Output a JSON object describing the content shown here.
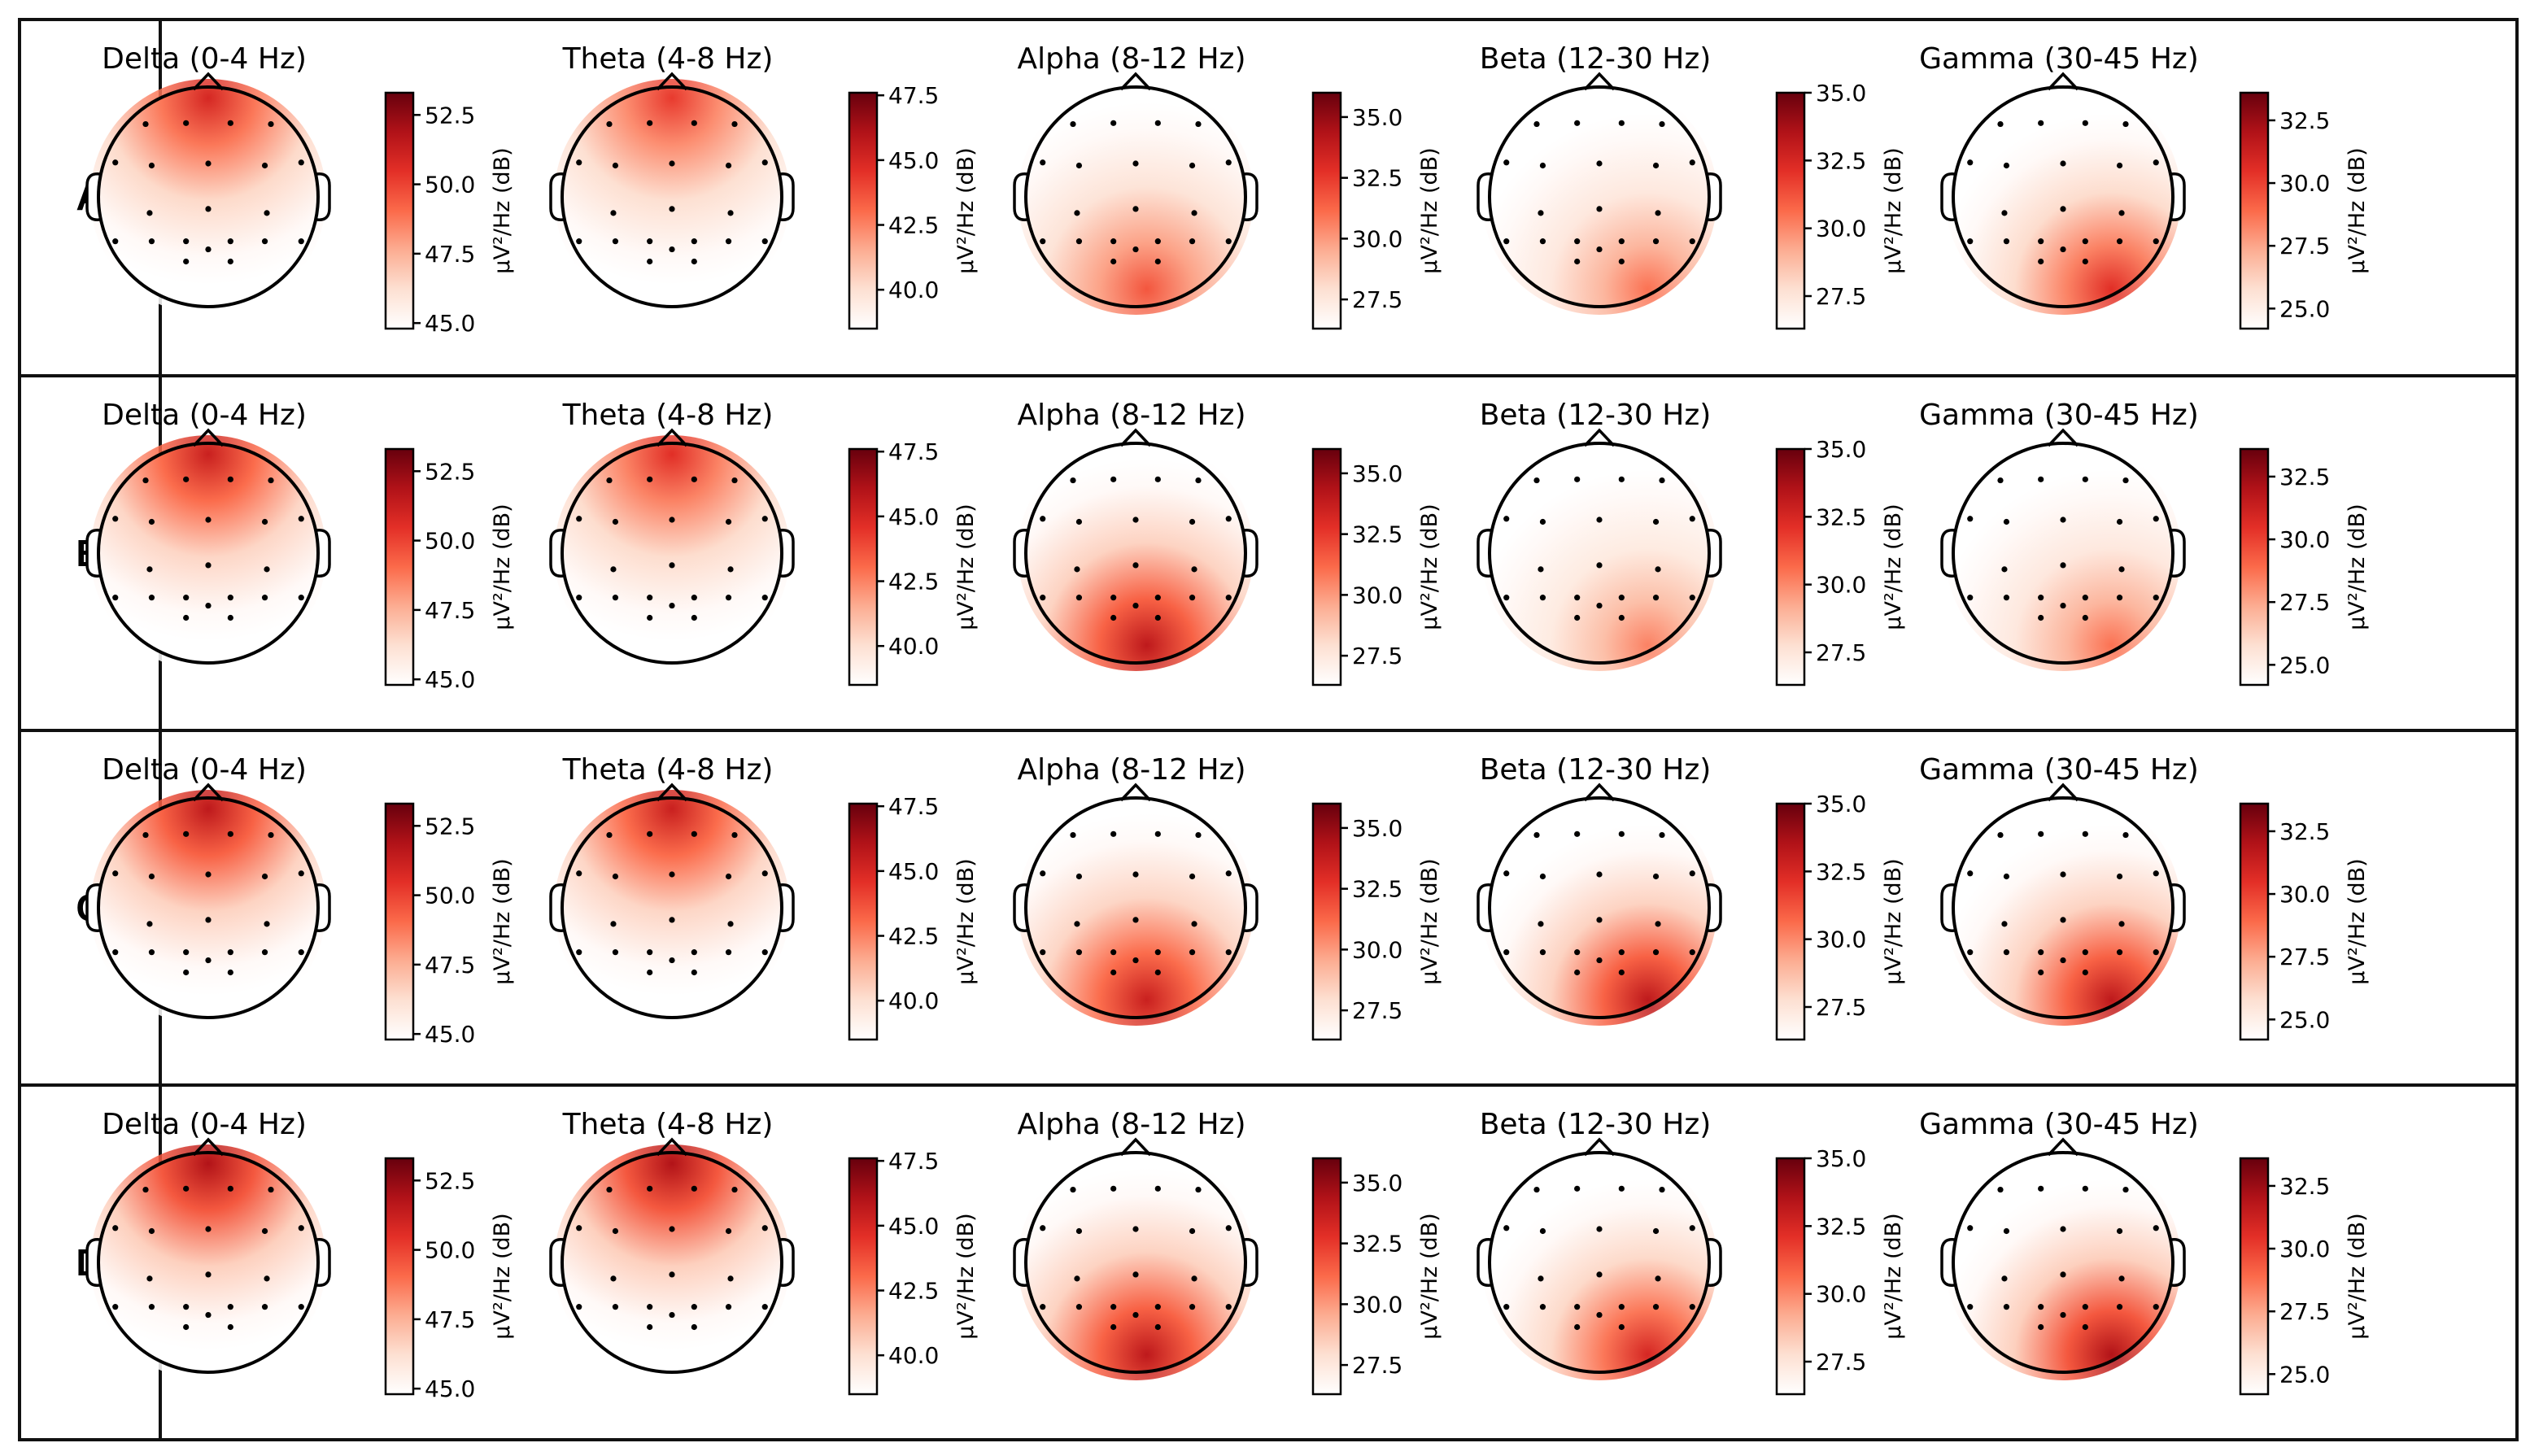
{
  "figure": {
    "row_labels": [
      "A",
      "B",
      "C",
      "D"
    ],
    "colorbar_label": "µV²/Hz (dB)",
    "colormap": [
      "#ffffff",
      "#fde0d2",
      "#fcad92",
      "#fb6a4a",
      "#e32f27",
      "#b11218",
      "#67000d"
    ]
  },
  "chart_data": {
    "type": "heatmap",
    "description": "EEG scalp topographic power maps per frequency band",
    "bands": [
      {
        "title": "Delta (0-4 Hz)",
        "range": [
          44.8,
          53.3
        ],
        "ticks": [
          "52.5",
          "50.0",
          "47.5",
          "45.0"
        ],
        "hotspot": "frontal"
      },
      {
        "title": "Theta (4-8 Hz)",
        "range": [
          38.5,
          47.6
        ],
        "ticks": [
          "47.5",
          "45.0",
          "42.5",
          "40.0"
        ],
        "hotspot": "frontal"
      },
      {
        "title": "Alpha (8-12 Hz)",
        "range": [
          26.3,
          36.0
        ],
        "ticks": [
          "35.0",
          "32.5",
          "30.0",
          "27.5"
        ],
        "hotspot": "occipital"
      },
      {
        "title": "Beta (12-30 Hz)",
        "range": [
          26.3,
          35.0
        ],
        "ticks": [
          "35.0",
          "32.5",
          "30.0",
          "27.5"
        ],
        "hotspot": "right-occipital"
      },
      {
        "title": "Gamma (30-45 Hz)",
        "range": [
          24.2,
          33.6
        ],
        "ticks": [
          "32.5",
          "30.0",
          "27.5",
          "25.0"
        ],
        "hotspot": "right-occipital"
      }
    ],
    "rows": [
      {
        "label": "A",
        "intensity": [
          0.85,
          0.75,
          0.65,
          0.55,
          0.8
        ]
      },
      {
        "label": "B",
        "intensity": [
          0.9,
          0.8,
          0.95,
          0.5,
          0.55
        ]
      },
      {
        "label": "C",
        "intensity": [
          0.95,
          0.9,
          0.9,
          0.95,
          0.95
        ]
      },
      {
        "label": "D",
        "intensity": [
          1.0,
          1.0,
          0.95,
          0.85,
          1.0
        ]
      }
    ]
  }
}
